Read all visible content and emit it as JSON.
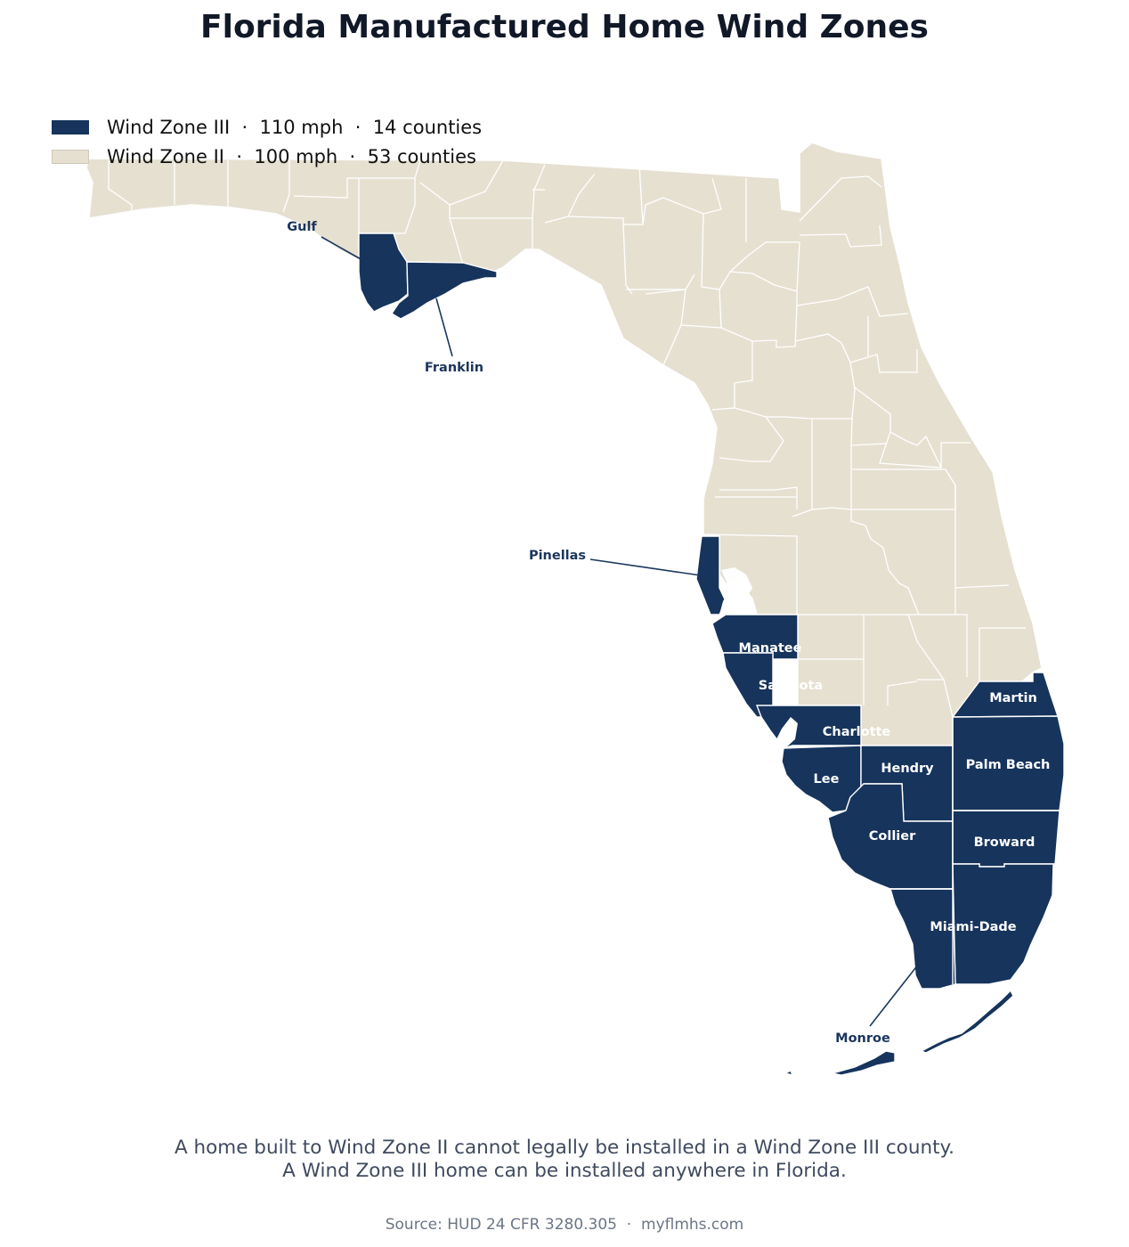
{
  "title": "Florida Manufactured Home Wind Zones",
  "colors": {
    "zone3": "#16345c",
    "zone2": "#e6e0d1",
    "border": "#ffffff",
    "leader": "#1b365d"
  },
  "legend": [
    {
      "zone": "Wind Zone III",
      "speed": "110 mph",
      "count": "14 counties",
      "text": "Wind Zone III  ·  110 mph  ·  14 counties"
    },
    {
      "zone": "Wind Zone II",
      "speed": "100 mph",
      "count": "53 counties",
      "text": "Wind Zone II  ·  100 mph  ·  53 counties"
    }
  ],
  "zone3_counties": [
    "Gulf",
    "Franklin",
    "Pinellas",
    "Manatee",
    "Sarasota",
    "Charlotte",
    "Lee",
    "Hendry",
    "Collier",
    "Martin",
    "Palm Beach",
    "Broward",
    "Miami-Dade",
    "Monroe"
  ],
  "labels": {
    "gulf": "Gulf",
    "franklin": "Franklin",
    "pinellas": "Pinellas",
    "manatee": "Manatee",
    "sarasota": "Sarasota",
    "charlotte": "Charlotte",
    "lee": "Lee",
    "hendry": "Hendry",
    "collier": "Collier",
    "martin": "Martin",
    "palm_beach": "Palm Beach",
    "broward": "Broward",
    "miami_dade": "Miami-Dade",
    "monroe": "Monroe"
  },
  "note_line1": "A home built to Wind Zone II cannot legally be installed in a Wind Zone III county.",
  "note_line2": "A Wind Zone III home can be installed anywhere in Florida.",
  "source": "Source: HUD 24 CFR 3280.305  ·  myflmhs.com"
}
